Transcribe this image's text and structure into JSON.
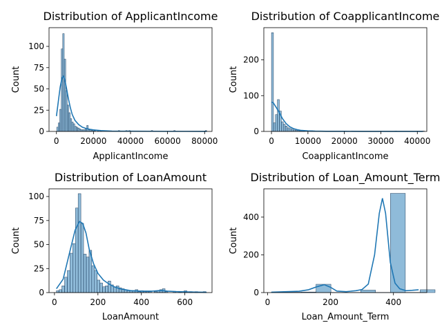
{
  "chart_data": [
    {
      "type": "bar",
      "title": "Distribution of ApplicantIncome",
      "xlabel": "ApplicantIncome",
      "ylabel": "Count",
      "xlim": [
        -4000,
        84000
      ],
      "ylim": [
        0,
        122
      ],
      "xticks": [
        0,
        20000,
        40000,
        60000,
        80000
      ],
      "yticks": [
        0,
        25,
        50,
        75,
        100
      ],
      "bin_width": 810,
      "bins": [
        {
          "x": 150,
          "count": 5
        },
        {
          "x": 960,
          "count": 10
        },
        {
          "x": 1770,
          "count": 26
        },
        {
          "x": 2580,
          "count": 97
        },
        {
          "x": 3390,
          "count": 115
        },
        {
          "x": 4200,
          "count": 85
        },
        {
          "x": 5010,
          "count": 48
        },
        {
          "x": 5820,
          "count": 31
        },
        {
          "x": 6630,
          "count": 22
        },
        {
          "x": 7440,
          "count": 15
        },
        {
          "x": 8250,
          "count": 11
        },
        {
          "x": 9060,
          "count": 9
        },
        {
          "x": 9870,
          "count": 6
        },
        {
          "x": 10680,
          "count": 5
        },
        {
          "x": 11490,
          "count": 4
        },
        {
          "x": 12300,
          "count": 3
        },
        {
          "x": 13110,
          "count": 2
        },
        {
          "x": 13920,
          "count": 2
        },
        {
          "x": 14730,
          "count": 2
        },
        {
          "x": 15540,
          "count": 3
        },
        {
          "x": 16350,
          "count": 7
        },
        {
          "x": 17160,
          "count": 2
        },
        {
          "x": 17970,
          "count": 2
        },
        {
          "x": 18780,
          "count": 1
        },
        {
          "x": 19590,
          "count": 2
        },
        {
          "x": 20400,
          "count": 1
        },
        {
          "x": 22020,
          "count": 1
        },
        {
          "x": 23640,
          "count": 1
        },
        {
          "x": 33360,
          "count": 1
        },
        {
          "x": 37410,
          "count": 1
        },
        {
          "x": 39030,
          "count": 1
        },
        {
          "x": 51180,
          "count": 1
        },
        {
          "x": 63330,
          "count": 1
        },
        {
          "x": 80340,
          "count": 1
        }
      ],
      "kde": [
        [
          0,
          18
        ],
        [
          1000,
          35
        ],
        [
          2000,
          52
        ],
        [
          3000,
          63
        ],
        [
          3700,
          65
        ],
        [
          4500,
          61
        ],
        [
          5500,
          50
        ],
        [
          6500,
          38
        ],
        [
          7500,
          28
        ],
        [
          8500,
          20
        ],
        [
          10000,
          13
        ],
        [
          12000,
          8
        ],
        [
          14000,
          5
        ],
        [
          16000,
          3.5
        ],
        [
          18000,
          2.5
        ],
        [
          20000,
          1.8
        ],
        [
          24000,
          1
        ],
        [
          30000,
          0.4
        ],
        [
          40000,
          0.3
        ],
        [
          50000,
          0.2
        ],
        [
          60000,
          0.1
        ],
        [
          70000,
          0.1
        ],
        [
          81000,
          0.05
        ]
      ]
    },
    {
      "type": "bar",
      "title": "Distribution of CoapplicantIncome",
      "xlabel": "CoapplicantIncome",
      "ylabel": "Count",
      "xlim": [
        -2100,
        42600
      ],
      "ylim": [
        0,
        290
      ],
      "xticks": [
        0,
        10000,
        20000,
        30000,
        40000
      ],
      "yticks": [
        0,
        100,
        200
      ],
      "bin_width": 540,
      "bins": [
        {
          "x": 0,
          "count": 276
        },
        {
          "x": 540,
          "count": 24
        },
        {
          "x": 1080,
          "count": 47
        },
        {
          "x": 1620,
          "count": 89
        },
        {
          "x": 2160,
          "count": 57
        },
        {
          "x": 2700,
          "count": 27
        },
        {
          "x": 3240,
          "count": 20
        },
        {
          "x": 3780,
          "count": 15
        },
        {
          "x": 4320,
          "count": 10
        },
        {
          "x": 4860,
          "count": 8
        },
        {
          "x": 5400,
          "count": 6
        },
        {
          "x": 5940,
          "count": 4
        },
        {
          "x": 6480,
          "count": 3
        },
        {
          "x": 7020,
          "count": 3
        },
        {
          "x": 7560,
          "count": 2
        },
        {
          "x": 8100,
          "count": 2
        },
        {
          "x": 8640,
          "count": 1
        },
        {
          "x": 10800,
          "count": 2
        },
        {
          "x": 11340,
          "count": 1
        },
        {
          "x": 20000,
          "count": 1
        },
        {
          "x": 33840,
          "count": 1
        },
        {
          "x": 41400,
          "count": 1
        }
      ],
      "kde": [
        [
          0,
          82
        ],
        [
          500,
          80
        ],
        [
          1000,
          72
        ],
        [
          1600,
          62
        ],
        [
          2200,
          52
        ],
        [
          3000,
          36
        ],
        [
          4000,
          22
        ],
        [
          5000,
          13
        ],
        [
          6000,
          8
        ],
        [
          7000,
          5
        ],
        [
          8000,
          3
        ],
        [
          10000,
          1.5
        ],
        [
          12000,
          0.8
        ],
        [
          15000,
          0.4
        ],
        [
          20000,
          0.3
        ],
        [
          25000,
          0.2
        ],
        [
          30000,
          0.1
        ],
        [
          35000,
          0.1
        ],
        [
          41500,
          0.05
        ]
      ]
    },
    {
      "type": "bar",
      "title": "Distribution of LoanAmount",
      "xlabel": "LoanAmount",
      "ylabel": "Count",
      "xlim": [
        -25,
        725
      ],
      "ylim": [
        0,
        108
      ],
      "xticks": [
        0,
        200,
        400,
        600
      ],
      "yticks": [
        0,
        25,
        50,
        75,
        100
      ],
      "bin_width": 12.5,
      "bins": [
        {
          "x": 9,
          "count": 2
        },
        {
          "x": 21.5,
          "count": 3
        },
        {
          "x": 34,
          "count": 7
        },
        {
          "x": 46.5,
          "count": 16
        },
        {
          "x": 59,
          "count": 23
        },
        {
          "x": 71.5,
          "count": 41
        },
        {
          "x": 84,
          "count": 51
        },
        {
          "x": 96.5,
          "count": 88
        },
        {
          "x": 109,
          "count": 103
        },
        {
          "x": 121.5,
          "count": 72
        },
        {
          "x": 134,
          "count": 40
        },
        {
          "x": 146.5,
          "count": 37
        },
        {
          "x": 159,
          "count": 44
        },
        {
          "x": 171.5,
          "count": 28
        },
        {
          "x": 184,
          "count": 23
        },
        {
          "x": 196.5,
          "count": 13
        },
        {
          "x": 209,
          "count": 10
        },
        {
          "x": 221.5,
          "count": 6
        },
        {
          "x": 234,
          "count": 7
        },
        {
          "x": 246.5,
          "count": 12
        },
        {
          "x": 259,
          "count": 8
        },
        {
          "x": 271.5,
          "count": 6
        },
        {
          "x": 284,
          "count": 7
        },
        {
          "x": 296.5,
          "count": 5
        },
        {
          "x": 309,
          "count": 4
        },
        {
          "x": 321.5,
          "count": 3
        },
        {
          "x": 334,
          "count": 2
        },
        {
          "x": 346.5,
          "count": 2
        },
        {
          "x": 359,
          "count": 2
        },
        {
          "x": 371.5,
          "count": 3
        },
        {
          "x": 384,
          "count": 1
        },
        {
          "x": 396.5,
          "count": 2
        },
        {
          "x": 409,
          "count": 1
        },
        {
          "x": 421.5,
          "count": 1
        },
        {
          "x": 434,
          "count": 1
        },
        {
          "x": 459,
          "count": 1
        },
        {
          "x": 471.5,
          "count": 2
        },
        {
          "x": 484,
          "count": 3
        },
        {
          "x": 496.5,
          "count": 4
        },
        {
          "x": 509,
          "count": 1
        },
        {
          "x": 546.5,
          "count": 1
        },
        {
          "x": 571.5,
          "count": 1
        },
        {
          "x": 596.5,
          "count": 2
        },
        {
          "x": 621.5,
          "count": 1
        },
        {
          "x": 646.5,
          "count": 1
        },
        {
          "x": 684,
          "count": 1
        }
      ],
      "kde": [
        [
          9,
          4
        ],
        [
          40,
          14
        ],
        [
          70,
          42
        ],
        [
          95,
          65
        ],
        [
          115,
          74
        ],
        [
          130,
          72
        ],
        [
          145,
          62
        ],
        [
          160,
          45
        ],
        [
          180,
          30
        ],
        [
          200,
          20
        ],
        [
          225,
          13
        ],
        [
          250,
          9
        ],
        [
          275,
          6
        ],
        [
          300,
          4
        ],
        [
          325,
          3
        ],
        [
          350,
          2
        ],
        [
          400,
          1.5
        ],
        [
          450,
          1.5
        ],
        [
          490,
          2.2
        ],
        [
          520,
          1.5
        ],
        [
          560,
          1
        ],
        [
          600,
          0.8
        ],
        [
          650,
          0.5
        ],
        [
          700,
          0.3
        ]
      ]
    },
    {
      "type": "bar",
      "title": "Distribution of Loan_Amount_Term",
      "xlabel": "Loan_Amount_Term",
      "ylabel": "Count",
      "xlim": [
        -12,
        506
      ],
      "ylim": [
        0,
        550
      ],
      "xticks": [
        0,
        200,
        400
      ],
      "yticks": [
        0,
        200,
        400
      ],
      "bin_width": 47.3,
      "bins": [
        {
          "x": 12,
          "count": 2
        },
        {
          "x": 59.3,
          "count": 2
        },
        {
          "x": 106.6,
          "count": 3
        },
        {
          "x": 153.9,
          "count": 44
        },
        {
          "x": 201.2,
          "count": 1
        },
        {
          "x": 248.5,
          "count": 1
        },
        {
          "x": 295.8,
          "count": 13
        },
        {
          "x": 343.1,
          "count": 1
        },
        {
          "x": 390.4,
          "count": 526
        },
        {
          "x": 437.7,
          "count": 1
        },
        {
          "x": 485,
          "count": 15
        }
      ],
      "kde": [
        [
          12,
          2
        ],
        [
          60,
          5
        ],
        [
          100,
          7
        ],
        [
          130,
          15
        ],
        [
          155,
          30
        ],
        [
          180,
          42
        ],
        [
          200,
          28
        ],
        [
          220,
          8
        ],
        [
          250,
          5
        ],
        [
          280,
          10
        ],
        [
          300,
          16
        ],
        [
          320,
          45
        ],
        [
          340,
          200
        ],
        [
          355,
          420
        ],
        [
          365,
          500
        ],
        [
          375,
          420
        ],
        [
          390,
          160
        ],
        [
          405,
          50
        ],
        [
          420,
          20
        ],
        [
          440,
          10
        ],
        [
          460,
          12
        ],
        [
          480,
          15
        ]
      ]
    }
  ]
}
